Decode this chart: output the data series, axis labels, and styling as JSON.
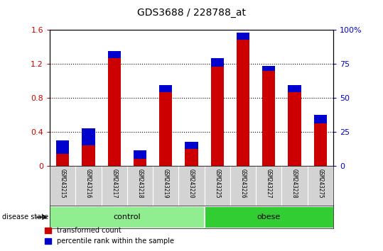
{
  "title": "GDS3688 / 228788_at",
  "samples": [
    "GSM243215",
    "GSM243216",
    "GSM243217",
    "GSM243218",
    "GSM243219",
    "GSM243220",
    "GSM243225",
    "GSM243226",
    "GSM243227",
    "GSM243228",
    "GSM243275"
  ],
  "transformed_count": [
    0.3,
    0.44,
    1.35,
    0.18,
    0.95,
    0.28,
    1.27,
    1.57,
    1.18,
    0.95,
    0.6
  ],
  "percentile_rank_pct": [
    10.0,
    12.5,
    5.0,
    6.25,
    5.0,
    5.0,
    6.25,
    5.0,
    3.75,
    5.0,
    6.25
  ],
  "groups": [
    {
      "label": "control",
      "count": 6,
      "color": "#90ee90"
    },
    {
      "label": "obese",
      "count": 5,
      "color": "#32cd32"
    }
  ],
  "bar_color_red": "#cc0000",
  "bar_color_blue": "#0000cc",
  "ylim_left": [
    0,
    1.6
  ],
  "ylim_right": [
    0,
    100
  ],
  "yticks_left": [
    0,
    0.4,
    0.8,
    1.2,
    1.6
  ],
  "yticks_right": [
    0,
    25,
    50,
    75,
    100
  ],
  "ylabel_left_color": "#cc0000",
  "ylabel_right_color": "#0000cc",
  "disease_state_label": "disease state",
  "legend_red_label": "transformed count",
  "legend_blue_label": "percentile rank within the sample",
  "background_xtick": "#d3d3d3"
}
